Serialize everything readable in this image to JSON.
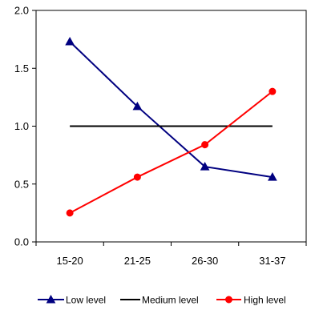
{
  "chart_data": {
    "type": "line",
    "categories": [
      "15-20",
      "21-25",
      "26-30",
      "31-37"
    ],
    "series": [
      {
        "name": "Low level",
        "values": [
          1.73,
          1.17,
          0.65,
          0.56
        ],
        "color": "#000080",
        "marker": "triangle"
      },
      {
        "name": "Medium level",
        "values": [
          1.0,
          1.0,
          1.0,
          1.0
        ],
        "color": "#000000",
        "marker": "none"
      },
      {
        "name": "High level",
        "values": [
          0.25,
          0.56,
          0.84,
          1.3
        ],
        "color": "#ff0000",
        "marker": "circle"
      }
    ],
    "title": "",
    "xlabel": "",
    "ylabel": "",
    "ylim": [
      0,
      2.0
    ],
    "yticks": [
      "0.0",
      "0.5",
      "1.0",
      "1.5",
      "2.0"
    ],
    "grid": false,
    "legend_position": "bottom"
  }
}
